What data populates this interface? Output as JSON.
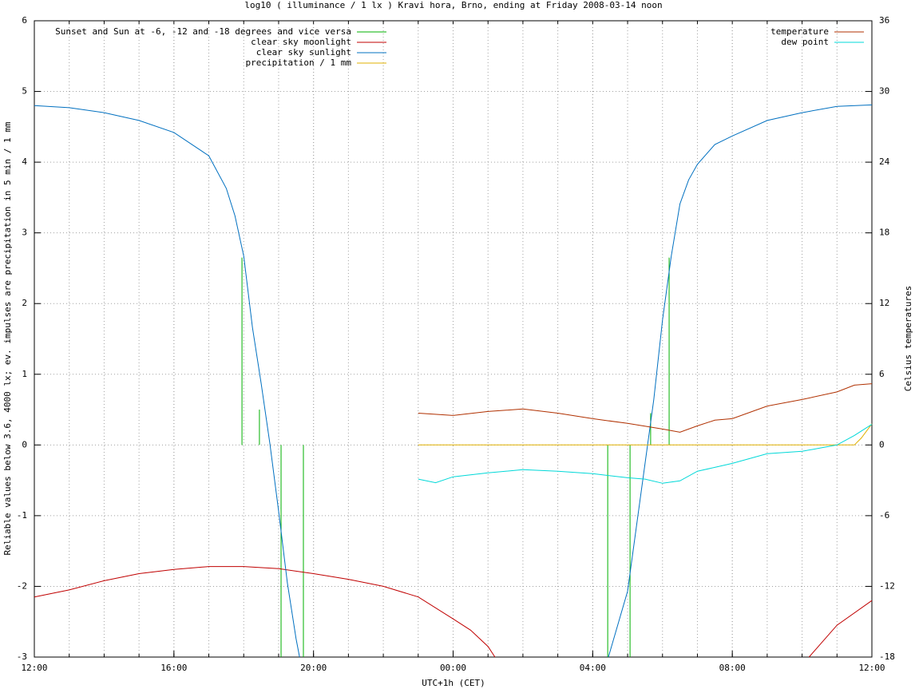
{
  "chart_data": {
    "type": "line",
    "title": "log10 ( illuminance / 1 lx ) Kravi hora, Brno, ending at Friday 2008-03-14 noon",
    "xlabel": "UTC+1h (CET)",
    "ylabel": "Reliable values below 3.6, 4000 lx; ev. impulses are precipitation in 5 min / 1 mm",
    "y2label": "Celsius temperatures",
    "xlim": [
      0,
      24
    ],
    "xticks": [
      {
        "value": 0,
        "label": "12:00"
      },
      {
        "value": 4,
        "label": "16:00"
      },
      {
        "value": 8,
        "label": "20:00"
      },
      {
        "value": 12,
        "label": "00:00"
      },
      {
        "value": 16,
        "label": "04:00"
      },
      {
        "value": 20,
        "label": "08:00"
      },
      {
        "value": 24,
        "label": "12:00"
      }
    ],
    "ylim": [
      -3,
      6
    ],
    "yticks": [
      -3,
      -2,
      -1,
      0,
      1,
      2,
      3,
      4,
      5,
      6
    ],
    "y2lim": [
      -18,
      36
    ],
    "y2ticks": [
      -18,
      -12,
      -6,
      0,
      6,
      12,
      18,
      24,
      30,
      36
    ],
    "grid": true,
    "series": [
      {
        "name": "Sunset and Sun at -6, -12 and -18 degrees and vice versa",
        "color": "#00b000",
        "style": "impulses",
        "key": "left",
        "x": [
          5.95,
          6.45,
          7.07,
          7.71,
          16.43,
          17.07,
          17.66,
          18.19
        ],
        "values": [
          2.65,
          0.5,
          -3,
          -3,
          -3,
          -3,
          0.45,
          2.65
        ]
      },
      {
        "name": "clear sky moonlight",
        "color": "#c00000",
        "style": "line",
        "key": "left",
        "x": [
          0,
          1,
          2,
          3,
          4,
          5,
          6,
          7,
          8,
          9,
          10,
          11,
          12,
          12.5,
          13,
          13.2,
          18,
          22.2,
          23,
          24
        ],
        "values": [
          -2.15,
          -2.05,
          -1.92,
          -1.82,
          -1.76,
          -1.72,
          -1.72,
          -1.75,
          -1.82,
          -1.9,
          -2.0,
          -2.15,
          -2.46,
          -2.62,
          -2.85,
          -3,
          null,
          -3,
          -2.55,
          -2.2
        ]
      },
      {
        "name": "clear sky sunlight",
        "color": "#0070c0",
        "style": "line",
        "key": "left",
        "x": [
          0,
          1,
          2,
          3,
          4,
          5,
          5.5,
          5.75,
          6,
          6.25,
          6.5,
          6.75,
          7,
          7.25,
          7.5,
          7.6,
          12,
          16.45,
          17,
          17.25,
          17.5,
          17.75,
          18,
          18.25,
          18.5,
          18.75,
          19,
          19.5,
          20,
          21,
          22,
          23,
          24
        ],
        "values": [
          4.8,
          4.77,
          4.7,
          4.59,
          4.42,
          4.09,
          3.63,
          3.24,
          2.67,
          1.66,
          0.87,
          0.02,
          -0.94,
          -1.95,
          -2.74,
          -3,
          null,
          -3,
          -2.07,
          -1.16,
          -0.26,
          0.64,
          1.77,
          2.67,
          3.41,
          3.75,
          3.97,
          4.25,
          4.37,
          4.59,
          4.7,
          4.79,
          4.81
        ]
      },
      {
        "name": "precipitation / 1 mm",
        "color": "#e0b000",
        "style": "line",
        "key": "left",
        "x": [
          11,
          23.5,
          23.7,
          24
        ],
        "values": [
          0,
          0,
          0.1,
          0.3
        ]
      },
      {
        "name": "temperature",
        "color": "#b03000",
        "style": "line",
        "key": "right",
        "axis": "y2",
        "x": [
          11,
          12,
          13,
          14,
          15,
          16,
          17,
          18,
          18.5,
          19,
          19.5,
          20,
          21,
          22,
          23,
          23.5,
          24
        ],
        "values": [
          2.7,
          2.5,
          2.84,
          3.05,
          2.7,
          2.23,
          1.83,
          1.35,
          1.08,
          1.62,
          2.1,
          2.23,
          3.3,
          3.86,
          4.5,
          5.08,
          5.2
        ]
      },
      {
        "name": "dew point",
        "color": "#00d8d8",
        "style": "line",
        "key": "right",
        "axis": "y2",
        "x": [
          11,
          11.5,
          12,
          13,
          14,
          15,
          16,
          17,
          17.5,
          18,
          18.5,
          19,
          19.5,
          20,
          21,
          22,
          23,
          23.5,
          24
        ],
        "values": [
          -2.9,
          -3.2,
          -2.7,
          -2.37,
          -2.1,
          -2.23,
          -2.44,
          -2.78,
          -2.9,
          -3.25,
          -3.05,
          -2.23,
          -1.9,
          -1.56,
          -0.74,
          -0.54,
          0,
          0.81,
          1.76
        ]
      }
    ]
  }
}
